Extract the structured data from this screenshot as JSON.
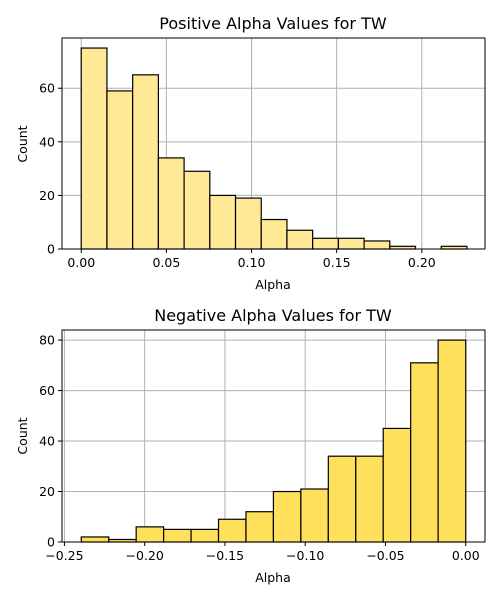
{
  "chart_data": [
    {
      "type": "bar",
      "title": "Positive Alpha Values for TW",
      "xlabel": "Alpha",
      "ylabel": "Count",
      "xlim": [
        -0.0113,
        0.2371
      ],
      "ylim": [
        0,
        78.75
      ],
      "x_ticks": [
        "0.00",
        "0.05",
        "0.10",
        "0.15",
        "0.20"
      ],
      "x_tick_values": [
        0.0,
        0.05,
        0.1,
        0.15,
        0.2
      ],
      "y_ticks": [
        "0",
        "20",
        "40",
        "60"
      ],
      "y_tick_values": [
        0,
        20,
        40,
        60
      ],
      "grid": true,
      "color": "#FFE996",
      "bins": [
        {
          "start": 0.0,
          "end": 0.0151,
          "count": 75
        },
        {
          "start": 0.0151,
          "end": 0.0302,
          "count": 59
        },
        {
          "start": 0.0302,
          "end": 0.0453,
          "count": 65
        },
        {
          "start": 0.0453,
          "end": 0.0604,
          "count": 34
        },
        {
          "start": 0.0604,
          "end": 0.0755,
          "count": 29
        },
        {
          "start": 0.0755,
          "end": 0.0906,
          "count": 20
        },
        {
          "start": 0.0906,
          "end": 0.1057,
          "count": 19
        },
        {
          "start": 0.1057,
          "end": 0.1208,
          "count": 11
        },
        {
          "start": 0.1208,
          "end": 0.1359,
          "count": 7
        },
        {
          "start": 0.1359,
          "end": 0.151,
          "count": 4
        },
        {
          "start": 0.151,
          "end": 0.1661,
          "count": 4
        },
        {
          "start": 0.1661,
          "end": 0.1812,
          "count": 3
        },
        {
          "start": 0.1812,
          "end": 0.1963,
          "count": 1
        },
        {
          "start": 0.1963,
          "end": 0.2114,
          "count": 0
        },
        {
          "start": 0.2114,
          "end": 0.2265,
          "count": 1
        }
      ]
    },
    {
      "type": "bar",
      "title": "Negative Alpha Values for TW",
      "xlabel": "Alpha",
      "ylabel": "Count",
      "xlim": [
        -0.2515,
        0.012
      ],
      "ylim": [
        0,
        84
      ],
      "x_ticks": [
        "−0.25",
        "−0.20",
        "−0.15",
        "−0.10",
        "−0.05",
        "0.00"
      ],
      "x_tick_values": [
        -0.25,
        -0.2,
        -0.15,
        -0.1,
        -0.05,
        0.0
      ],
      "y_ticks": [
        "0",
        "20",
        "40",
        "60",
        "80"
      ],
      "y_tick_values": [
        0,
        20,
        40,
        60,
        80
      ],
      "grid": true,
      "color": "#FFE05A",
      "bins": [
        {
          "start": -0.2395,
          "end": -0.2224,
          "count": 2
        },
        {
          "start": -0.2224,
          "end": -0.2053,
          "count": 1
        },
        {
          "start": -0.2053,
          "end": -0.1882,
          "count": 6
        },
        {
          "start": -0.1882,
          "end": -0.1711,
          "count": 5
        },
        {
          "start": -0.1711,
          "end": -0.154,
          "count": 5
        },
        {
          "start": -0.154,
          "end": -0.1369,
          "count": 9
        },
        {
          "start": -0.1369,
          "end": -0.1198,
          "count": 12
        },
        {
          "start": -0.1198,
          "end": -0.1027,
          "count": 20
        },
        {
          "start": -0.1027,
          "end": -0.0856,
          "count": 21
        },
        {
          "start": -0.0856,
          "end": -0.0685,
          "count": 34
        },
        {
          "start": -0.0685,
          "end": -0.0514,
          "count": 34
        },
        {
          "start": -0.0514,
          "end": -0.0343,
          "count": 45
        },
        {
          "start": -0.0343,
          "end": -0.0172,
          "count": 71
        },
        {
          "start": -0.0172,
          "end": 0.0,
          "count": 80
        }
      ]
    }
  ]
}
